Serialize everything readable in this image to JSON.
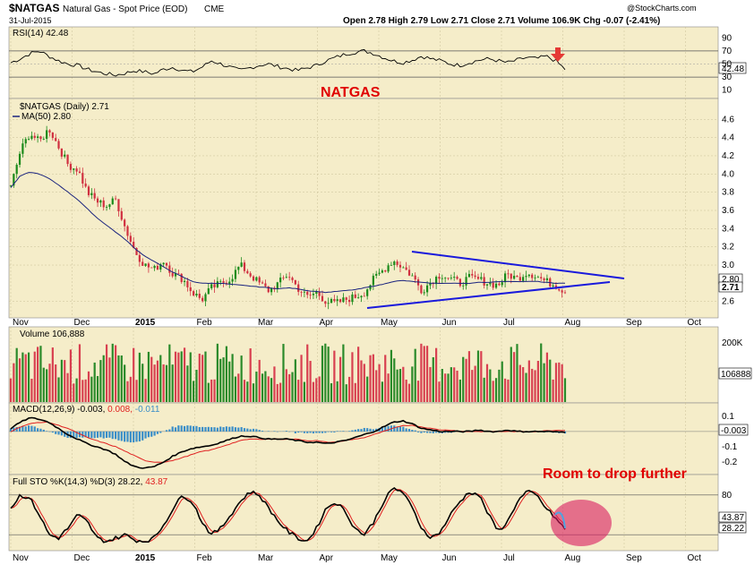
{
  "header": {
    "symbol": "$NATGAS",
    "name": "Natural Gas - Spot Price (EOD)",
    "exchange": "CME",
    "date": "31-Jul-2015",
    "ohlc_text": "Open 2.78  High 2.79  Low 2.71  Close 2.71  Volume 106.9K  Chg -0.07 (-2.41%)",
    "watermark": "@StockCharts.com"
  },
  "colors": {
    "panel_bg": "#f5edc9",
    "up": "#1a8a1a",
    "down": "#d03040",
    "volume_up": "#2a8a2a",
    "volume_down": "#d84050",
    "ma": "#1a237e",
    "trendline": "#1a1adc",
    "macd_line": "#000000",
    "signal_line": "#e02020",
    "histogram": "#3a8ec8",
    "annotation": "#e00000",
    "circle": "#d81b60"
  },
  "annotations": {
    "natgas_label": "NATGAS",
    "drop_label": "Room to drop further"
  },
  "x_axis": {
    "labels": [
      "Nov",
      "Dec",
      "2015",
      "Feb",
      "Mar",
      "Apr",
      "May",
      "Jun",
      "Jul",
      "Aug",
      "Sep",
      "Oct"
    ],
    "bold_labels": [
      "2015"
    ]
  },
  "chart_data": [
    {
      "type": "line",
      "panel": "rsi",
      "legend": "RSI(14) 42.48",
      "last_value": "42.48",
      "y_ticks": [
        "90",
        "70",
        "50",
        "30",
        "10"
      ],
      "ylim": [
        0,
        100
      ],
      "reference_lines": [
        30,
        70
      ],
      "values": [
        52,
        58,
        66,
        70,
        62,
        55,
        50,
        48,
        42,
        38,
        35,
        33,
        36,
        40,
        38,
        35,
        42,
        45,
        40,
        38,
        45,
        55,
        50,
        45,
        40,
        44,
        48,
        50,
        46,
        43,
        40,
        44,
        48,
        55,
        60,
        65,
        68,
        70,
        66,
        60,
        55,
        52,
        56,
        62,
        58,
        55,
        50,
        48,
        52,
        56,
        58,
        55,
        52,
        56,
        60,
        58,
        62,
        55,
        42
      ]
    },
    {
      "type": "candlestick",
      "panel": "price",
      "legend_price": "$NATGAS (Daily) 2.71",
      "legend_ma": "MA(50) 2.80",
      "last_value": "2.71",
      "ma_value": "2.80",
      "y_ticks": [
        "4.6",
        "4.4",
        "4.2",
        "4.0",
        "3.8",
        "3.6",
        "3.4",
        "3.2",
        "3.0",
        "2.6"
      ],
      "ylim": [
        2.45,
        4.75
      ],
      "closes": [
        3.85,
        4.25,
        4.45,
        4.35,
        4.5,
        4.3,
        4.1,
        4.05,
        3.8,
        3.7,
        3.65,
        3.72,
        3.4,
        3.15,
        3.0,
        2.95,
        3.05,
        2.9,
        2.85,
        2.7,
        2.62,
        2.75,
        2.8,
        2.85,
        3.0,
        2.9,
        2.8,
        2.72,
        2.8,
        2.9,
        2.75,
        2.65,
        2.7,
        2.6,
        2.58,
        2.62,
        2.65,
        2.7,
        2.85,
        2.95,
        3.05,
        2.98,
        2.88,
        2.72,
        2.82,
        2.9,
        2.85,
        2.8,
        2.86,
        2.84,
        2.8,
        2.78,
        2.9,
        2.85,
        2.92,
        2.88,
        2.82,
        2.78,
        2.71
      ],
      "ma50": [
        3.85,
        3.98,
        4.02,
        4.0,
        3.95,
        3.88,
        3.8,
        3.72,
        3.62,
        3.52,
        3.44,
        3.36,
        3.28,
        3.18,
        3.1,
        3.04,
        2.98,
        2.92,
        2.87,
        2.82,
        2.8,
        2.8,
        2.8,
        2.79,
        2.78,
        2.77,
        2.76,
        2.75,
        2.74,
        2.75,
        2.74,
        2.72,
        2.71,
        2.7,
        2.71,
        2.72,
        2.73,
        2.75,
        2.77,
        2.79,
        2.82,
        2.83,
        2.82,
        2.81,
        2.8,
        2.8,
        2.8,
        2.8,
        2.8,
        2.81,
        2.81,
        2.82,
        2.82,
        2.82,
        2.82,
        2.82,
        2.81,
        2.8,
        2.8
      ]
    },
    {
      "type": "bar",
      "panel": "volume",
      "legend": "Volume 106,888",
      "last_value": "106888",
      "y_ticks": [
        "200K"
      ],
      "ylim": [
        0,
        240
      ]
    },
    {
      "type": "line",
      "panel": "macd",
      "legend_main": "MACD(12,26,9) -0.003,",
      "legend_signal": "0.008,",
      "legend_hist": "-0.011",
      "last_value": "-0.003",
      "y_ticks": [
        "0.1",
        "-0.1",
        "-0.2"
      ],
      "ylim": [
        -0.27,
        0.14
      ],
      "macd": [
        0.02,
        0.06,
        0.09,
        0.08,
        0.06,
        0.02,
        -0.02,
        -0.05,
        -0.08,
        -0.1,
        -0.12,
        -0.15,
        -0.2,
        -0.23,
        -0.24,
        -0.23,
        -0.2,
        -0.16,
        -0.13,
        -0.11,
        -0.1,
        -0.09,
        -0.07,
        -0.05,
        -0.03,
        -0.03,
        -0.04,
        -0.05,
        -0.05,
        -0.05,
        -0.06,
        -0.07,
        -0.07,
        -0.08,
        -0.07,
        -0.06,
        -0.04,
        -0.02,
        0.0,
        0.03,
        0.06,
        0.07,
        0.05,
        0.02,
        0.01,
        0.0,
        0.0,
        0.0,
        0.0,
        0.01,
        0.0,
        0.0,
        0.01,
        0.0,
        0.0,
        0.0,
        0.0,
        -0.003,
        -0.003
      ],
      "signal": [
        0.0,
        0.03,
        0.05,
        0.06,
        0.06,
        0.04,
        0.02,
        -0.01,
        -0.04,
        -0.06,
        -0.08,
        -0.1,
        -0.13,
        -0.16,
        -0.19,
        -0.2,
        -0.2,
        -0.19,
        -0.17,
        -0.15,
        -0.13,
        -0.12,
        -0.1,
        -0.08,
        -0.06,
        -0.05,
        -0.05,
        -0.05,
        -0.05,
        -0.05,
        -0.05,
        -0.06,
        -0.06,
        -0.07,
        -0.07,
        -0.06,
        -0.05,
        -0.04,
        -0.02,
        0.0,
        0.02,
        0.04,
        0.04,
        0.03,
        0.02,
        0.01,
        0.01,
        0.0,
        0.0,
        0.0,
        0.0,
        0.0,
        0.0,
        0.0,
        0.0,
        0.0,
        0.005,
        0.008,
        0.008
      ]
    },
    {
      "type": "line",
      "panel": "stochastic",
      "legend_main": "Full STO %K(14,3) %D(3) 28.22,",
      "legend_d": "43.87",
      "d_value": "43.87",
      "k_value": "28.22",
      "y_ticks": [
        "80"
      ],
      "ylim": [
        0,
        100
      ],
      "k": [
        60,
        80,
        75,
        50,
        20,
        15,
        30,
        50,
        40,
        15,
        10,
        15,
        20,
        12,
        10,
        15,
        35,
        60,
        80,
        70,
        40,
        20,
        30,
        50,
        70,
        85,
        80,
        60,
        40,
        25,
        15,
        10,
        30,
        60,
        70,
        55,
        30,
        20,
        40,
        70,
        90,
        85,
        60,
        30,
        15,
        25,
        50,
        70,
        85,
        80,
        50,
        25,
        40,
        70,
        85,
        80,
        60,
        45,
        28
      ]
    }
  ]
}
